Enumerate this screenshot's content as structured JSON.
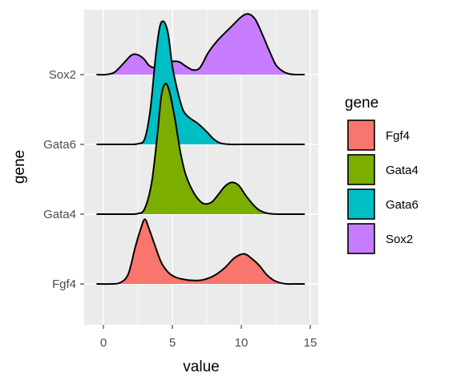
{
  "chart_data": {
    "type": "ridgeline",
    "xlabel": "value",
    "ylabel": "gene",
    "xlim": [
      -1.5,
      15.5
    ],
    "x_ticks": [
      0,
      5,
      10,
      15
    ],
    "grid": true,
    "legend_title": "gene",
    "legend_position": "right",
    "categories": [
      "Fgf4",
      "Gata4",
      "Gata6",
      "Sox2"
    ],
    "series": [
      {
        "name": "Fgf4",
        "color": "#F8766D",
        "x": [
          -0.5,
          0.5,
          1.2,
          1.8,
          2.3,
          2.7,
          3.0,
          3.3,
          3.7,
          4.2,
          4.7,
          5.2,
          5.8,
          6.5,
          7.2,
          8.0,
          8.8,
          9.5,
          10.2,
          10.8,
          11.3,
          11.8,
          12.3,
          12.8,
          13.3,
          14.0,
          14.6
        ],
        "density": [
          0.0,
          0.0,
          0.02,
          0.17,
          0.63,
          0.95,
          1.12,
          0.96,
          0.69,
          0.37,
          0.2,
          0.12,
          0.08,
          0.06,
          0.07,
          0.14,
          0.28,
          0.45,
          0.52,
          0.43,
          0.32,
          0.17,
          0.07,
          0.02,
          0.0,
          0.0,
          0.0
        ]
      },
      {
        "name": "Gata4",
        "color": "#7CAE00",
        "x": [
          -0.5,
          1.5,
          2.5,
          3.0,
          3.5,
          3.9,
          4.2,
          4.5,
          4.8,
          5.2,
          5.6,
          6.0,
          6.6,
          7.2,
          7.8,
          8.3,
          8.8,
          9.3,
          9.8,
          10.3,
          10.8,
          11.3,
          12.0,
          13.0,
          14.6
        ],
        "density": [
          0.0,
          0.0,
          0.01,
          0.1,
          0.55,
          1.35,
          2.05,
          2.26,
          2.11,
          1.63,
          1.05,
          0.66,
          0.35,
          0.19,
          0.2,
          0.33,
          0.48,
          0.55,
          0.5,
          0.33,
          0.18,
          0.07,
          0.01,
          0.0,
          0.0
        ]
      },
      {
        "name": "Gata6",
        "color": "#00BFC4",
        "x": [
          -0.5,
          1.5,
          2.5,
          3.0,
          3.4,
          3.8,
          4.1,
          4.4,
          4.7,
          5.0,
          5.4,
          5.8,
          6.3,
          6.8,
          7.4,
          8.0,
          8.5,
          9.2,
          10.0,
          14.6
        ],
        "density": [
          0.0,
          0.0,
          0.01,
          0.1,
          0.6,
          1.55,
          2.05,
          2.12,
          1.9,
          1.35,
          0.9,
          0.58,
          0.45,
          0.37,
          0.24,
          0.09,
          0.02,
          0.0,
          0.0,
          0.0
        ]
      },
      {
        "name": "Sox2",
        "color": "#C77CFF",
        "x": [
          -0.5,
          0.2,
          0.8,
          1.4,
          2.0,
          2.4,
          2.9,
          3.3,
          3.7,
          4.1,
          4.5,
          5.0,
          5.5,
          6.0,
          6.5,
          7.0,
          7.6,
          8.2,
          8.8,
          9.4,
          10.0,
          10.5,
          11.0,
          11.5,
          12.0,
          12.5,
          13.0,
          13.5,
          14.0,
          14.6
        ],
        "density": [
          0.0,
          0.0,
          0.04,
          0.18,
          0.33,
          0.35,
          0.28,
          0.16,
          0.12,
          0.15,
          0.21,
          0.23,
          0.22,
          0.14,
          0.08,
          0.12,
          0.38,
          0.57,
          0.72,
          0.86,
          1.0,
          1.05,
          0.96,
          0.71,
          0.43,
          0.17,
          0.06,
          0.01,
          0.0,
          0.0
        ]
      }
    ]
  }
}
